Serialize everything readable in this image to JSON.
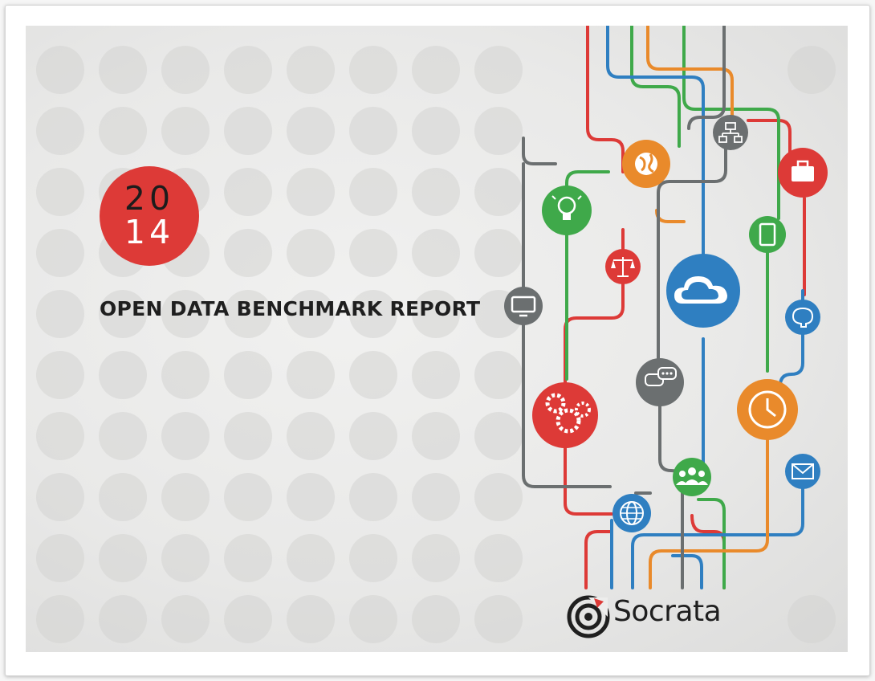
{
  "cover": {
    "year_top": "20",
    "year_bottom": "14",
    "title": "OPEN DATA BENCHMARK REPORT",
    "brand_name": "Socrata"
  },
  "colors": {
    "red": "#dd3a37",
    "green": "#3fa94a",
    "blue": "#2f7fc1",
    "orange": "#e98a2b",
    "gray": "#6b6f70",
    "dots": "#d3d3d2"
  },
  "icons": [
    "lightbulb-icon",
    "globe-icon",
    "org-chart-icon",
    "briefcase-icon",
    "scales-icon",
    "tablet-icon",
    "cloud-icon",
    "monitor-icon",
    "brain-icon",
    "gears-icon",
    "chat-bubble-icon",
    "clock-icon",
    "envelope-icon",
    "people-icon",
    "world-grid-icon"
  ]
}
